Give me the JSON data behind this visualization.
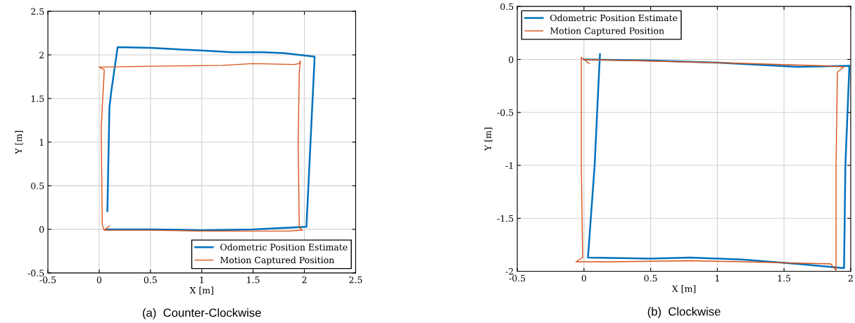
{
  "chart_data": [
    {
      "type": "line",
      "title": "(a)  Counter-Clockwise",
      "xlabel": "X [m]",
      "ylabel": "Y [m]",
      "xlim": [
        -0.5,
        2.5
      ],
      "ylim": [
        -0.5,
        2.5
      ],
      "xticks": [
        -0.5,
        0,
        0.5,
        1,
        1.5,
        2,
        2.5
      ],
      "yticks": [
        -0.5,
        0,
        0.5,
        1,
        1.5,
        2,
        2.5
      ],
      "grid": true,
      "legend": "bottom right",
      "series": [
        {
          "name": "Odometric Position Estimate",
          "color": "#0072bd",
          "x": [
            0.08,
            0.1,
            0.12,
            0.18,
            0.5,
            1.0,
            1.3,
            1.6,
            1.8,
            2.1,
            2.02,
            1.5,
            1.0,
            0.5,
            0.07
          ],
          "values": [
            0.21,
            1.4,
            1.6,
            2.09,
            2.08,
            2.05,
            2.03,
            2.03,
            2.02,
            1.98,
            0.03,
            0.0,
            -0.01,
            0.0,
            0.0
          ]
        },
        {
          "name": "Motion Captured Position",
          "color": "#d95319",
          "x": [
            0.1,
            0.05,
            0.5,
            1.0,
            1.5,
            1.85,
            1.98,
            1.95,
            1.94,
            1.95,
            1.96,
            1.95,
            1.9,
            1.5,
            1.2,
            0.5,
            0.0,
            0.05,
            0.03,
            0.02,
            0.03,
            0.05
          ],
          "values": [
            0.04,
            -0.01,
            -0.01,
            -0.02,
            -0.02,
            -0.02,
            -0.01,
            0.02,
            1.0,
            1.8,
            1.93,
            1.9,
            1.89,
            1.9,
            1.88,
            1.87,
            1.86,
            1.83,
            1.4,
            1.15,
            0.05,
            -0.01
          ]
        }
      ]
    },
    {
      "type": "line",
      "title": "(b)  Clockwise",
      "xlabel": "X [m]",
      "ylabel": "Y [m]",
      "xlim": [
        -0.5,
        2
      ],
      "ylim": [
        -2,
        0.5
      ],
      "xticks": [
        -0.5,
        0,
        0.5,
        1,
        1.5,
        2
      ],
      "yticks": [
        -2,
        -1.5,
        -1,
        -0.5,
        0,
        0.5
      ],
      "grid": true,
      "legend": "top left",
      "series": [
        {
          "name": "Odometric Position Estimate",
          "color": "#0072bd",
          "x": [
            0.12,
            0.11,
            0.08,
            0.03,
            0.5,
            0.8,
            1.2,
            1.6,
            1.95,
            1.96,
            1.99,
            1.6,
            1.0,
            0.5,
            0.0
          ],
          "values": [
            0.05,
            -0.2,
            -1.0,
            -1.87,
            -1.88,
            -1.87,
            -1.89,
            -1.93,
            -1.97,
            -1.0,
            -0.06,
            -0.07,
            -0.03,
            -0.01,
            0.0
          ]
        },
        {
          "name": "Motion Captured Position",
          "color": "#d95319",
          "x": [
            0.04,
            0.0,
            -0.02,
            -0.02,
            -0.01,
            -0.06,
            0.2,
            0.8,
            1.2,
            1.85,
            1.89,
            1.89,
            1.9,
            1.95,
            1.8,
            1.0,
            0.0
          ],
          "values": [
            -0.04,
            0.0,
            0.02,
            -1.0,
            -1.87,
            -1.91,
            -1.91,
            -1.9,
            -1.91,
            -1.93,
            -1.99,
            -1.0,
            -0.12,
            -0.07,
            -0.06,
            -0.03,
            0.0
          ]
        }
      ]
    }
  ]
}
